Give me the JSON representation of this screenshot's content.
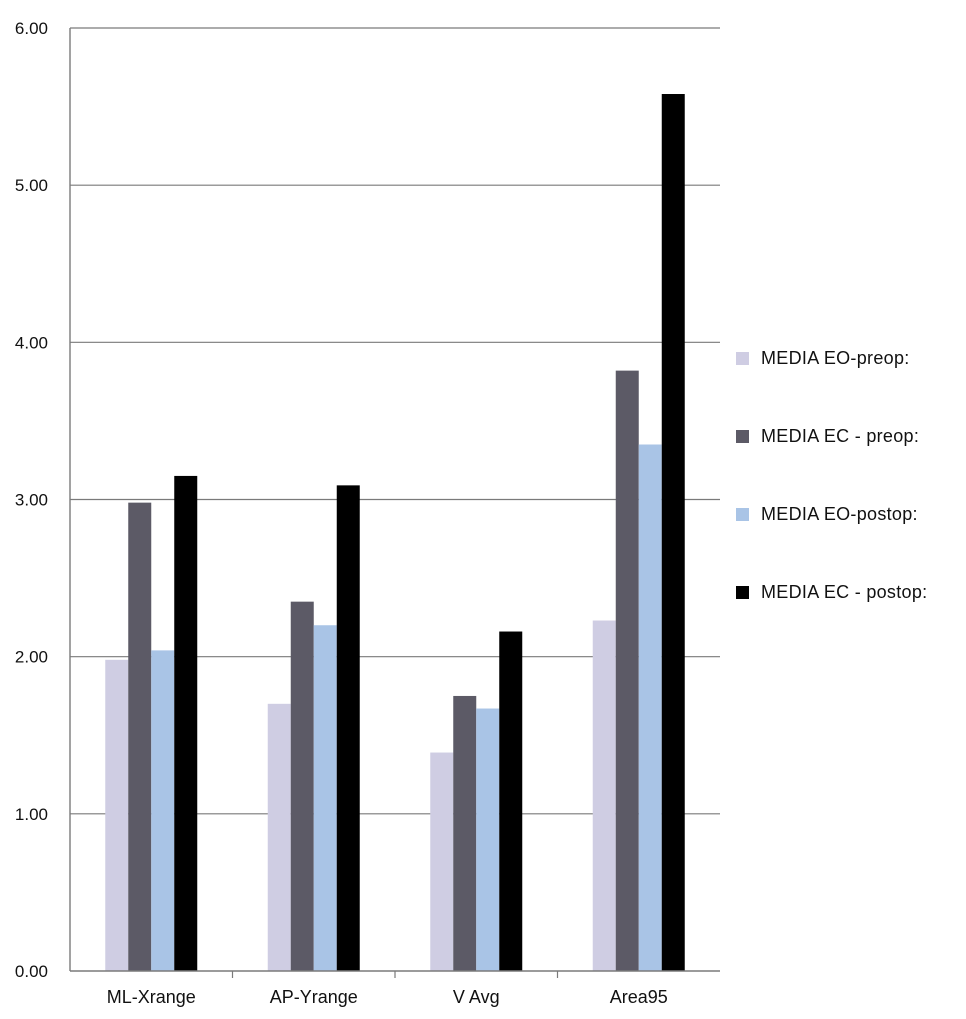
{
  "chart_data": {
    "type": "bar",
    "categories": [
      "ML-Xrange",
      "AP-Yrange",
      "V Avg",
      "Area95"
    ],
    "series": [
      {
        "name": "MEDIA EO-preop:",
        "color": "#cfcde3",
        "values": [
          1.98,
          1.7,
          1.39,
          2.23
        ]
      },
      {
        "name": "MEDIA EC - preop:",
        "color": "#5c5a66",
        "values": [
          2.98,
          2.35,
          1.75,
          3.82
        ]
      },
      {
        "name": "MEDIA EO-postop:",
        "color": "#a9c4e6",
        "values": [
          2.04,
          2.2,
          1.67,
          3.35
        ]
      },
      {
        "name": "MEDIA EC - postop:",
        "color": "#000000",
        "values": [
          3.15,
          3.09,
          2.16,
          5.58
        ]
      }
    ],
    "y_ticks": [
      "0.00",
      "1.00",
      "2.00",
      "3.00",
      "4.00",
      "5.00",
      "6.00"
    ],
    "ylim": [
      0,
      6
    ],
    "grid": true,
    "legend_position": "right"
  }
}
